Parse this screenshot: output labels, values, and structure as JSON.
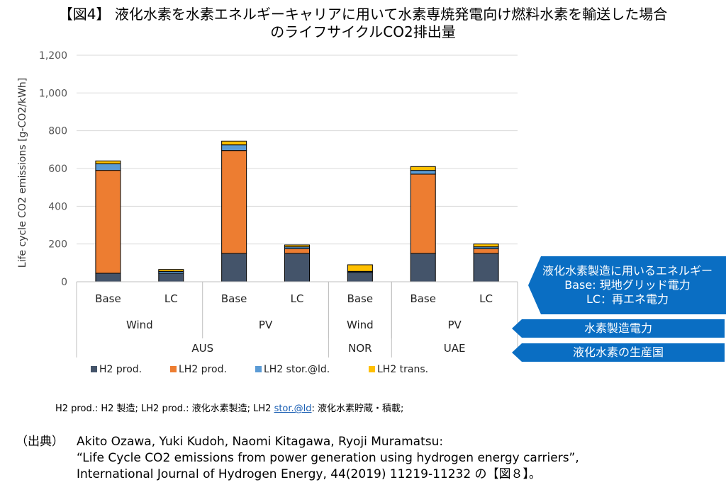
{
  "title": {
    "line1": "【図4】 液化水素を水素エネルギーキャリアに用いて水素専焼発電向け燃料水素を輸送した場合",
    "line2": "のライフサイクルCO2排出量"
  },
  "chart_data": {
    "type": "bar",
    "stacked": true,
    "ylabel": "Life cycle CO2 emissions [g-CO2/kWh]",
    "ylim": [
      0,
      1200
    ],
    "yticks": [
      0,
      200,
      400,
      600,
      800,
      1000,
      1200
    ],
    "ytick_labels": [
      "0",
      "200",
      "400",
      "600",
      "800",
      "1,000",
      "1,200"
    ],
    "grid": true,
    "legend_position": "bottom",
    "categories": [
      "Base",
      "LC",
      "Base",
      "LC",
      "Base",
      "Base",
      "LC"
    ],
    "category_groups": [
      {
        "label": "Wind",
        "span": 2
      },
      {
        "label": "PV",
        "span": 2
      },
      {
        "label": "Wind",
        "span": 1
      },
      {
        "label": "PV",
        "span": 2
      }
    ],
    "country_groups": [
      {
        "label": "AUS",
        "span": 4
      },
      {
        "label": "NOR",
        "span": 1
      },
      {
        "label": "UAE",
        "span": 2
      }
    ],
    "series": [
      {
        "name": "H2 prod.",
        "color": "#44546a",
        "values": [
          45,
          45,
          150,
          150,
          50,
          150,
          150
        ]
      },
      {
        "name": "LH2 prod.",
        "color": "#ed7d31",
        "values": [
          545,
          0,
          545,
          25,
          0,
          420,
          25
        ]
      },
      {
        "name": "LH2 stor.@ld.",
        "color": "#5b9bd5",
        "values": [
          35,
          10,
          30,
          10,
          5,
          20,
          10
        ]
      },
      {
        "name": "LH2 trans.",
        "color": "#ffc000",
        "values": [
          15,
          10,
          20,
          10,
          35,
          20,
          15
        ]
      }
    ]
  },
  "callouts": {
    "energy_line1": "液化水素製造に用いるエネルギー",
    "energy_line2": "Base: 現地グリッド電力",
    "energy_line3": "LC：再エネ電力",
    "power": "水素製造電力",
    "country": "液化水素の生産国"
  },
  "note": {
    "before_link": "H2 prod.: H2 製造;  LH2 prod.: 液化水素製造;  LH2 ",
    "link": "stor.@ld",
    "after_link": ": 液化水素貯蔵・積載;"
  },
  "source": {
    "label": "（出典）",
    "line1": "Akito Ozawa, Yuki Kudoh, Naomi Kitagawa, Ryoji Muramatsu:",
    "line2": "“Life Cycle CO2 emissions from power generation using hydrogen energy carriers”,",
    "line3": "International Journal of Hydrogen Energy,  44(2019) 11219-11232 の【図８】。"
  }
}
